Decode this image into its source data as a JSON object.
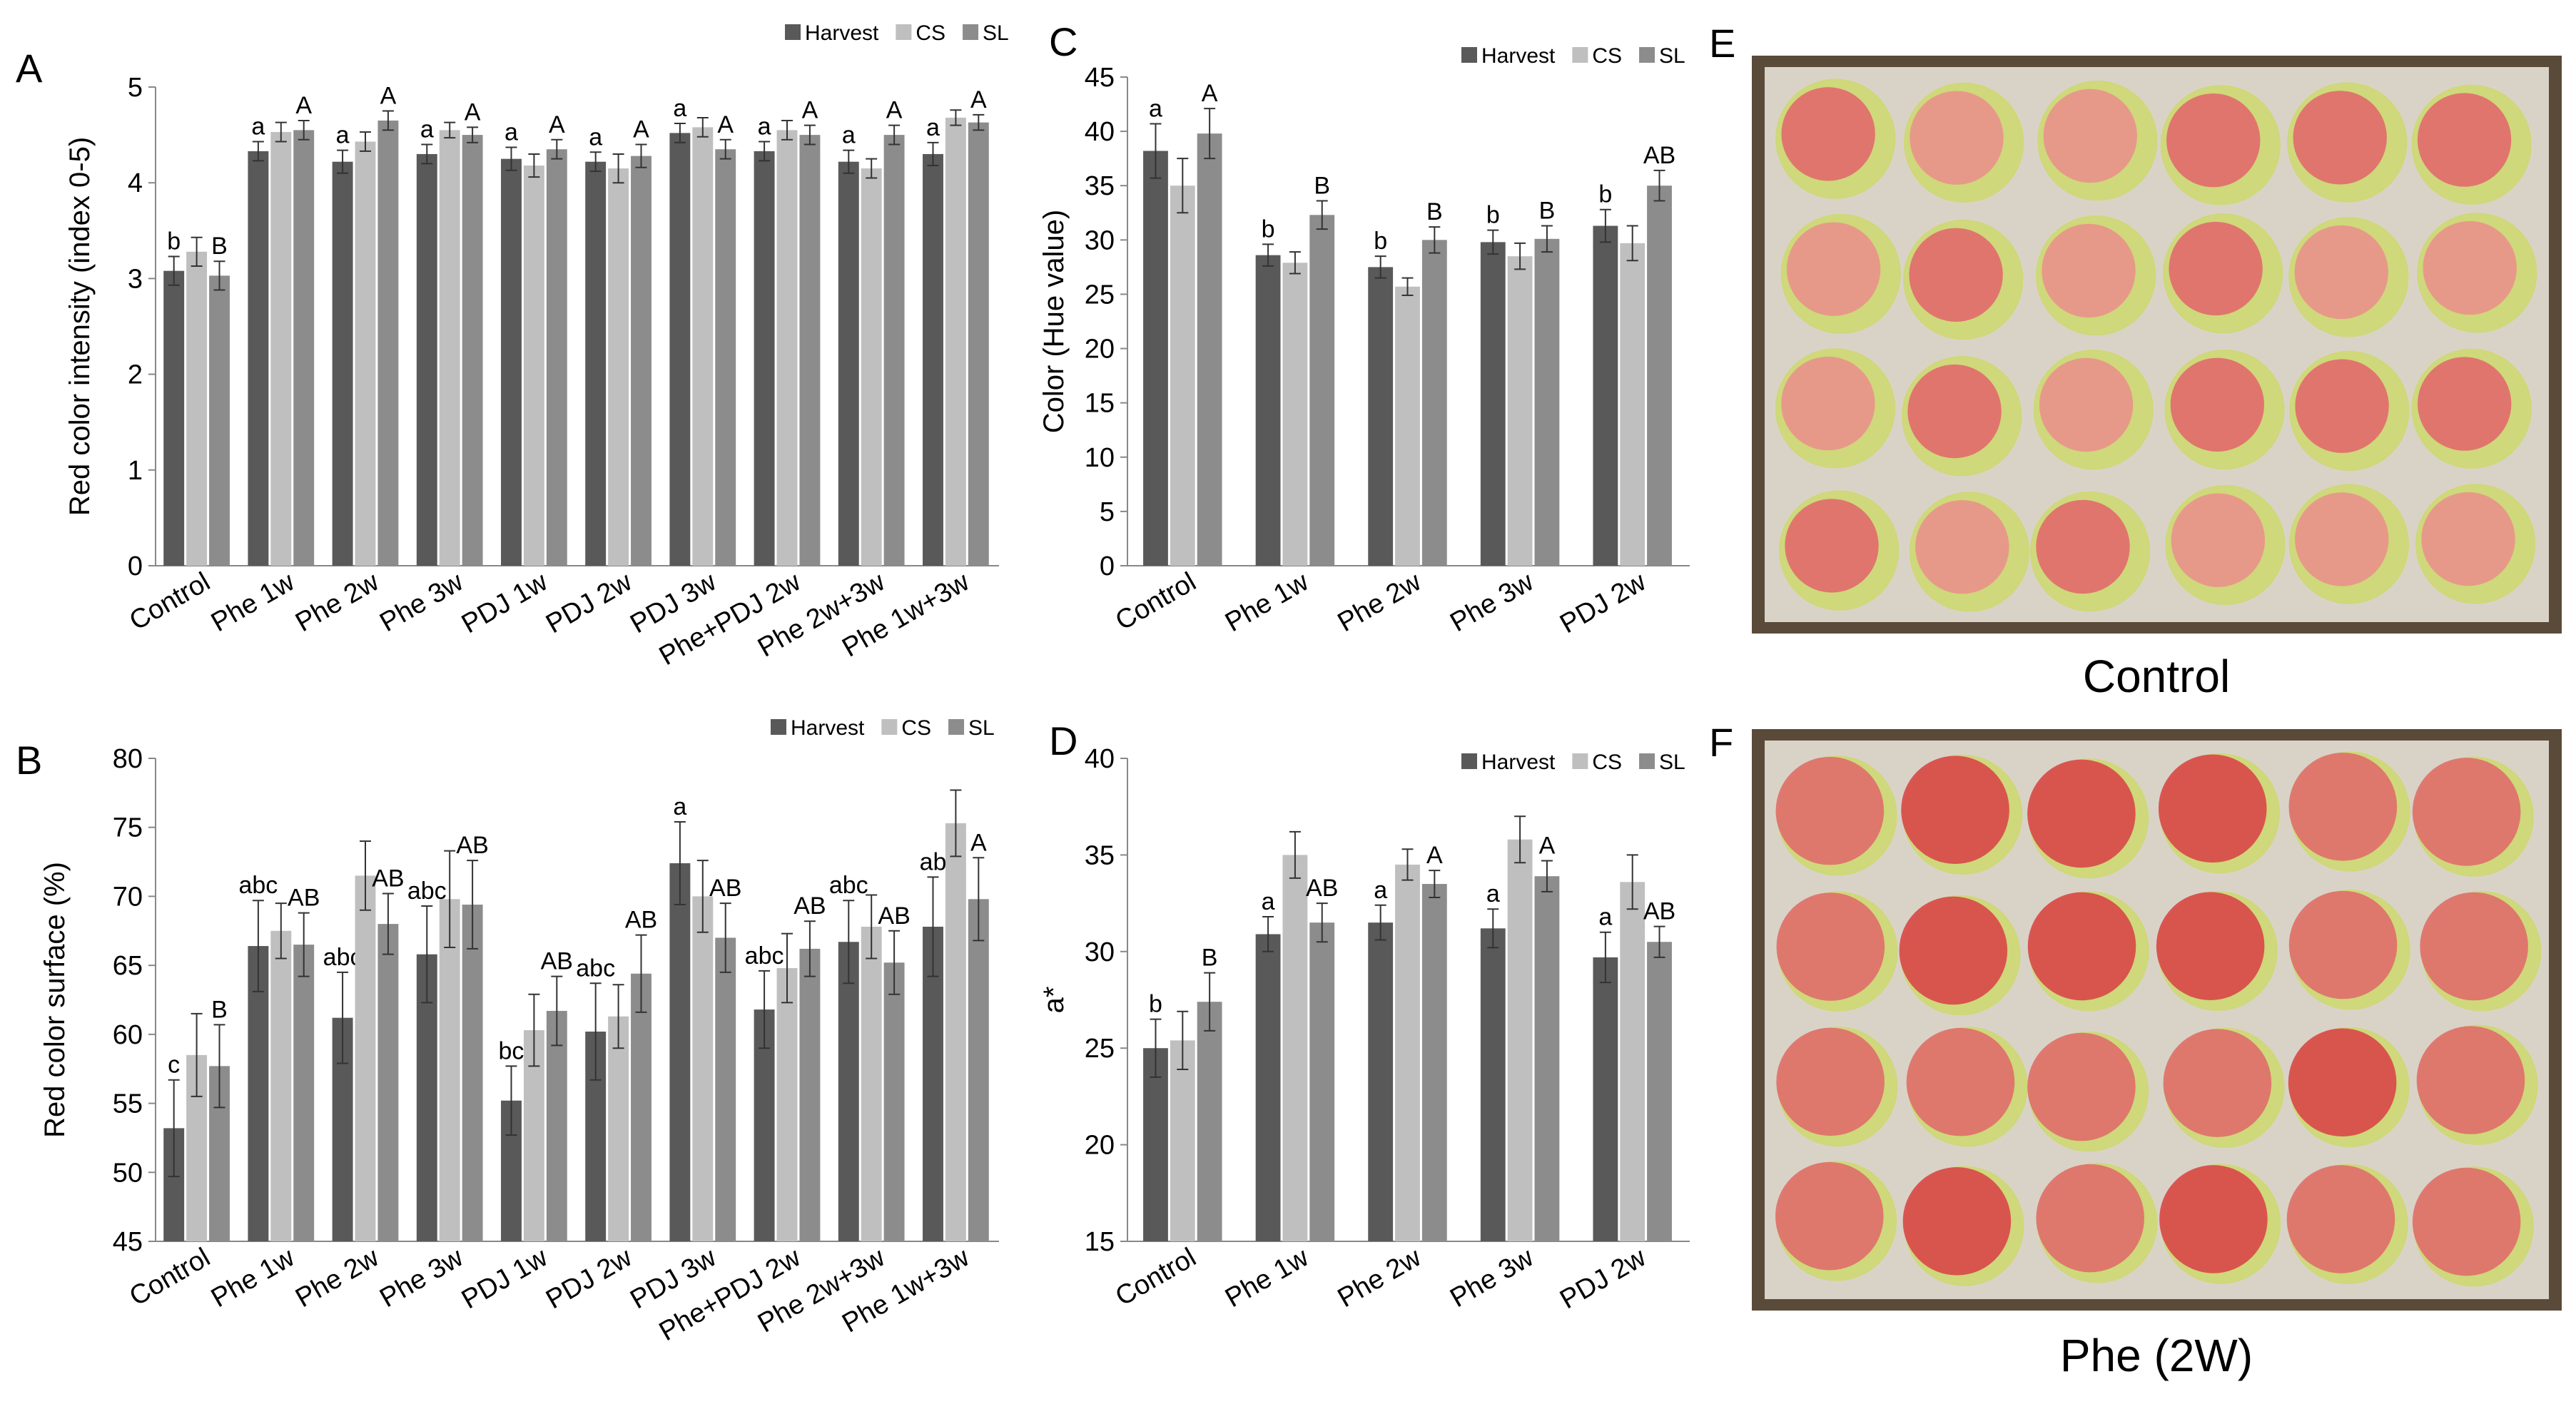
{
  "colors": {
    "Harvest": "#595959",
    "CS": "#bfbfbf",
    "SL": "#8c8c8c",
    "photo_bg": "#5a4a39",
    "tray": "#d9d3c7"
  },
  "legend_labels": [
    "Harvest",
    "CS",
    "SL"
  ],
  "chart_data": [
    {
      "panel": "A",
      "type": "bar",
      "ylabel": "Red color intensity (index 0-5)",
      "ylim": [
        0,
        5
      ],
      "yticks": [
        0,
        1,
        2,
        3,
        4,
        5
      ],
      "categories": [
        "Control",
        "Phe 1w",
        "Phe  2w",
        "Phe  3w",
        "PDJ 1w",
        "PDJ 2w",
        "PDJ 3w",
        "Phe+PDJ 2w",
        "Phe 2w+3w",
        "Phe 1w+3w"
      ],
      "series": [
        {
          "name": "Harvest",
          "values": [
            3.08,
            4.33,
            4.22,
            4.3,
            4.25,
            4.22,
            4.52,
            4.33,
            4.22,
            4.3
          ],
          "errors": [
            0.15,
            0.1,
            0.12,
            0.1,
            0.12,
            0.1,
            0.1,
            0.1,
            0.12,
            0.12
          ]
        },
        {
          "name": "CS",
          "values": [
            3.28,
            4.53,
            4.43,
            4.55,
            4.18,
            4.15,
            4.58,
            4.55,
            4.15,
            4.68
          ],
          "errors": [
            0.15,
            0.1,
            0.1,
            0.08,
            0.12,
            0.15,
            0.1,
            0.1,
            0.1,
            0.08
          ]
        },
        {
          "name": "SL",
          "values": [
            3.03,
            4.55,
            4.65,
            4.5,
            4.35,
            4.28,
            4.35,
            4.5,
            4.5,
            4.63
          ],
          "errors": [
            0.15,
            0.1,
            0.1,
            0.08,
            0.1,
            0.12,
            0.1,
            0.1,
            0.1,
            0.08
          ]
        }
      ],
      "letters": {
        "Harvest": [
          "b",
          "a",
          "a",
          "a",
          "a",
          "a",
          "a",
          "a",
          "a",
          "a"
        ],
        "SL": [
          "B",
          "A",
          "A",
          "A",
          "A",
          "A",
          "A",
          "A",
          "A",
          "A"
        ]
      }
    },
    {
      "panel": "B",
      "type": "bar",
      "ylabel": "Red color surface (%)",
      "ylim": [
        45,
        80
      ],
      "yticks": [
        45,
        50,
        55,
        60,
        65,
        70,
        75,
        80
      ],
      "categories": [
        "Control",
        "Phe 1w",
        "Phe  2w",
        "Phe  3w",
        "PDJ 1w",
        "PDJ 2w",
        "PDJ 3w",
        "Phe+PDJ 2w",
        "Phe 2w+3w",
        "Phe 1w+3w"
      ],
      "series": [
        {
          "name": "Harvest",
          "values": [
            53.2,
            66.4,
            61.2,
            65.8,
            55.2,
            60.2,
            72.4,
            61.8,
            66.7,
            67.8
          ],
          "errors": [
            3.5,
            3.3,
            3.3,
            3.5,
            2.5,
            3.5,
            3.0,
            2.8,
            3.0,
            3.6
          ]
        },
        {
          "name": "CS",
          "values": [
            58.5,
            67.5,
            71.5,
            69.8,
            60.3,
            61.3,
            70.0,
            64.8,
            67.8,
            75.3
          ],
          "errors": [
            3.0,
            2.0,
            2.5,
            3.5,
            2.6,
            2.3,
            2.6,
            2.5,
            2.3,
            2.4
          ]
        },
        {
          "name": "SL",
          "values": [
            57.7,
            66.5,
            68.0,
            69.4,
            61.7,
            64.4,
            67.0,
            66.2,
            65.2,
            69.8
          ],
          "errors": [
            3.0,
            2.3,
            2.2,
            3.2,
            2.5,
            2.8,
            2.5,
            2.0,
            2.3,
            3.0
          ]
        }
      ],
      "letters": {
        "Harvest": [
          "c",
          "abc",
          "abc",
          "abc",
          "bc",
          "abc",
          "a",
          "abc",
          "abc",
          "ab"
        ],
        "SL": [
          "B",
          "AB",
          "AB",
          "AB",
          "AB",
          "AB",
          "AB",
          "AB",
          "AB",
          "A"
        ]
      }
    },
    {
      "panel": "C",
      "type": "bar",
      "ylabel": "Color (Hue value)",
      "ylim": [
        0,
        45
      ],
      "yticks": [
        0,
        5,
        10,
        15,
        20,
        25,
        30,
        35,
        40,
        45
      ],
      "categories": [
        "Control",
        "Phe 1w",
        "Phe 2w",
        "Phe 3w",
        "PDJ 2w"
      ],
      "series": [
        {
          "name": "Harvest",
          "values": [
            38.2,
            28.6,
            27.5,
            29.8,
            31.3
          ],
          "errors": [
            2.5,
            1.0,
            1.0,
            1.1,
            1.5
          ]
        },
        {
          "name": "CS",
          "values": [
            35.0,
            27.9,
            25.7,
            28.5,
            29.7
          ],
          "errors": [
            2.5,
            1.0,
            0.8,
            1.2,
            1.6
          ]
        },
        {
          "name": "SL",
          "values": [
            39.8,
            32.3,
            30.0,
            30.1,
            35.0
          ],
          "errors": [
            2.3,
            1.3,
            1.2,
            1.2,
            1.4
          ]
        }
      ],
      "letters": {
        "Harvest": [
          "a",
          "b",
          "b",
          "b",
          "b"
        ],
        "SL": [
          "A",
          "B",
          "B",
          "B",
          "AB"
        ]
      }
    },
    {
      "panel": "D",
      "type": "bar",
      "ylabel": "a*",
      "ylim": [
        15,
        40
      ],
      "yticks": [
        15,
        20,
        25,
        30,
        35,
        40
      ],
      "categories": [
        "Control",
        "Phe 1w",
        "Phe 2w",
        "Phe 3w",
        "PDJ 2w"
      ],
      "series": [
        {
          "name": "Harvest",
          "values": [
            25.0,
            30.9,
            31.5,
            31.2,
            29.7
          ],
          "errors": [
            1.5,
            0.9,
            0.9,
            1.0,
            1.3
          ]
        },
        {
          "name": "CS",
          "values": [
            25.4,
            35.0,
            34.5,
            35.8,
            33.6
          ],
          "errors": [
            1.5,
            1.2,
            0.8,
            1.2,
            1.4
          ]
        },
        {
          "name": "SL",
          "values": [
            27.4,
            31.5,
            33.5,
            33.9,
            30.5
          ],
          "errors": [
            1.5,
            1.0,
            0.7,
            0.8,
            0.8
          ]
        }
      ],
      "letters": {
        "Harvest": [
          "b",
          "a",
          "a",
          "a",
          "a"
        ],
        "SL": [
          "B",
          "AB",
          "A",
          "A",
          "AB"
        ]
      }
    }
  ],
  "photos": [
    {
      "panel": "E",
      "caption": "Control"
    },
    {
      "panel": "F",
      "caption": "Phe (2W)"
    }
  ]
}
